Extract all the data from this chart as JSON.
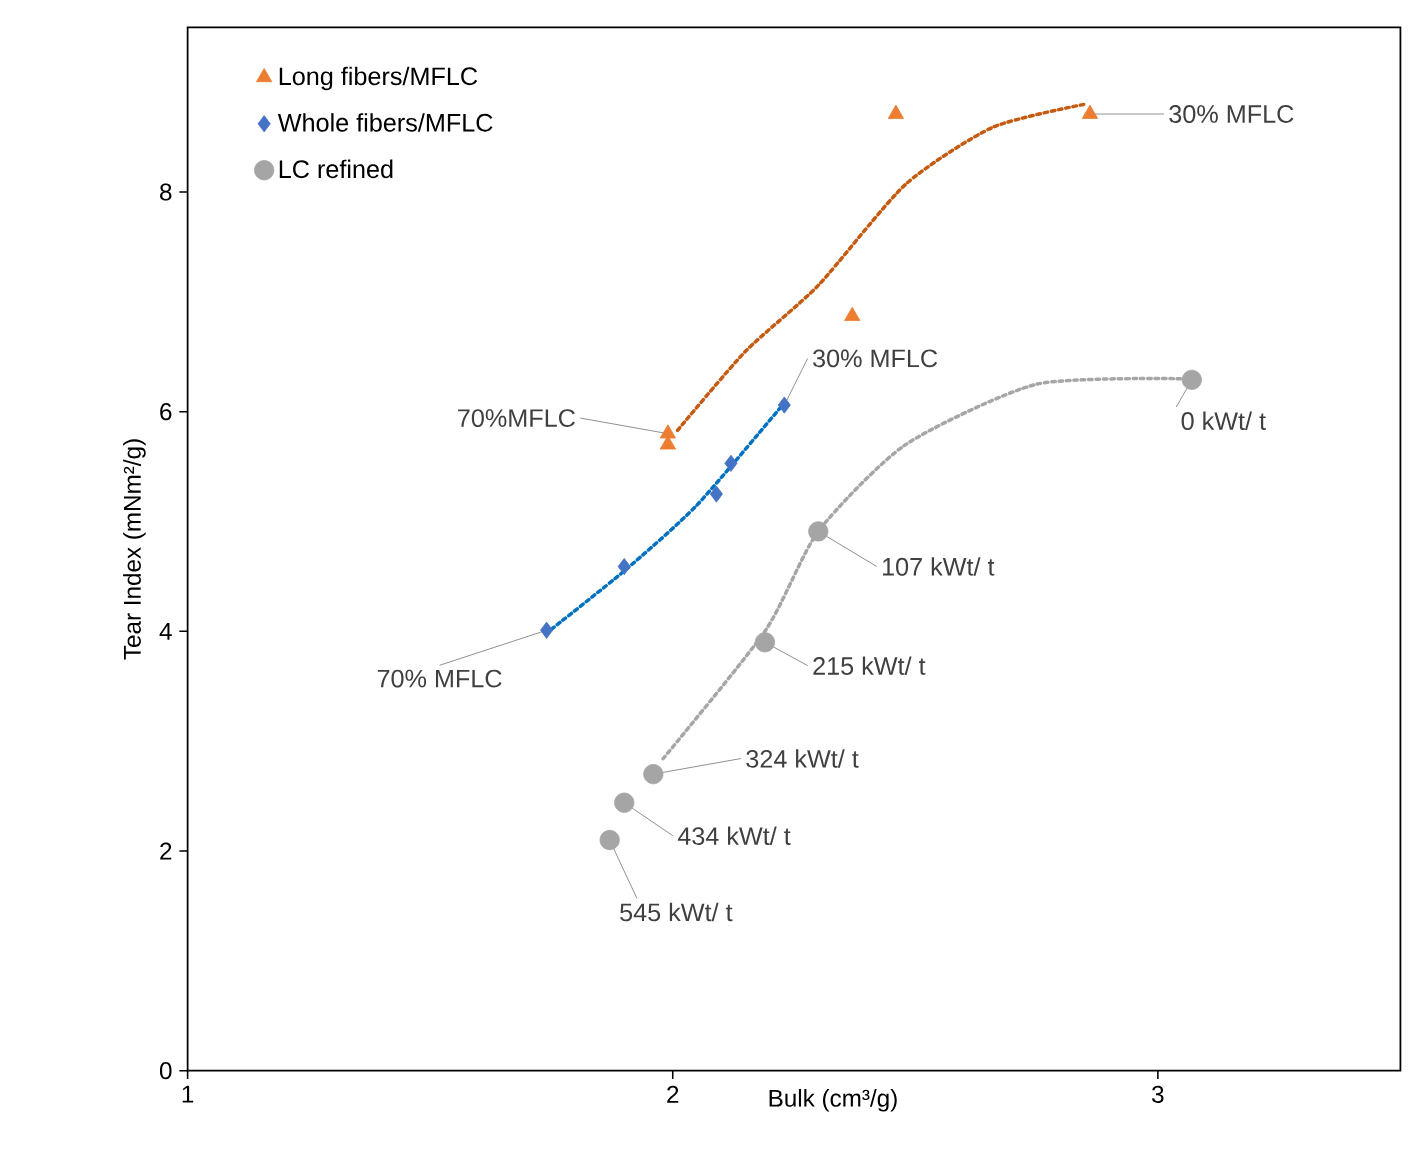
{
  "chart_data": {
    "type": "scatter",
    "xlabel": "Bulk (cm³/g)",
    "ylabel": "Tear Index (mNm²/g)",
    "xlim": [
      1,
      3.5
    ],
    "ylim": [
      0,
      9.5
    ],
    "xticks": [
      1,
      2,
      3
    ],
    "yticks": [
      0,
      2,
      4,
      6,
      8
    ],
    "grid": false,
    "legend": "top left",
    "series": [
      {
        "name": "Long fibers/MFLC",
        "marker": "triangle",
        "color": "#ed7d31",
        "x": [
          1.99,
          1.99,
          2.37,
          2.46,
          2.86
        ],
        "values": [
          5.8,
          5.7,
          6.87,
          8.71,
          8.71
        ]
      },
      {
        "name": "Whole fibers/MFLC",
        "marker": "diamond",
        "color": "#4472c4",
        "x": [
          1.74,
          1.9,
          2.09,
          2.12,
          2.23
        ],
        "values": [
          4.01,
          4.59,
          5.25,
          5.53,
          6.06
        ]
      },
      {
        "name": "LC refined",
        "marker": "circle",
        "color": "#a5a5a5",
        "x": [
          3.07,
          2.3,
          2.19,
          1.96,
          1.9,
          1.87
        ],
        "values": [
          6.29,
          4.91,
          3.9,
          2.7,
          2.44,
          2.1
        ]
      },
      {
        "type": "line",
        "line_style": "dotted",
        "marker": "none",
        "color": "#c55a11",
        "x": [
          2.01,
          2.15,
          2.3,
          2.48,
          2.66,
          2.85
        ],
        "values": [
          5.83,
          6.55,
          7.15,
          8.07,
          8.59,
          8.8
        ]
      },
      {
        "type": "line",
        "line_style": "dotted",
        "marker": "none",
        "color": "#0070c0",
        "x": [
          1.75,
          1.9,
          2.05,
          2.23
        ],
        "values": [
          4.02,
          4.55,
          5.15,
          6.08
        ]
      },
      {
        "type": "line",
        "line_style": "dotted",
        "marker": "none",
        "color": "#a6a6a6",
        "x": [
          1.98,
          2.19,
          2.3,
          2.48,
          2.75,
          3.05
        ],
        "values": [
          2.84,
          4.0,
          4.91,
          5.7,
          6.25,
          6.3
        ]
      }
    ],
    "annotations": [
      {
        "text": "30% MFLC",
        "x": 2.86,
        "y": 8.71
      },
      {
        "text": "70%MFLC",
        "x": 1.99,
        "y": 5.8
      },
      {
        "text": "30% MFLC",
        "x": 2.23,
        "y": 6.06
      },
      {
        "text": "70% MFLC",
        "x": 1.74,
        "y": 4.01
      },
      {
        "text": "0 kWt/ t",
        "x": 3.07,
        "y": 6.29
      },
      {
        "text": "107 kWt/ t",
        "x": 2.3,
        "y": 4.91
      },
      {
        "text": "215 kWt/ t",
        "x": 2.19,
        "y": 3.9
      },
      {
        "text": "324 kWt/ t",
        "x": 1.96,
        "y": 2.7
      },
      {
        "text": "434 kWt/ t",
        "x": 1.9,
        "y": 2.44
      },
      {
        "text": "545 kWt/ t",
        "x": 1.87,
        "y": 2.1
      }
    ]
  }
}
